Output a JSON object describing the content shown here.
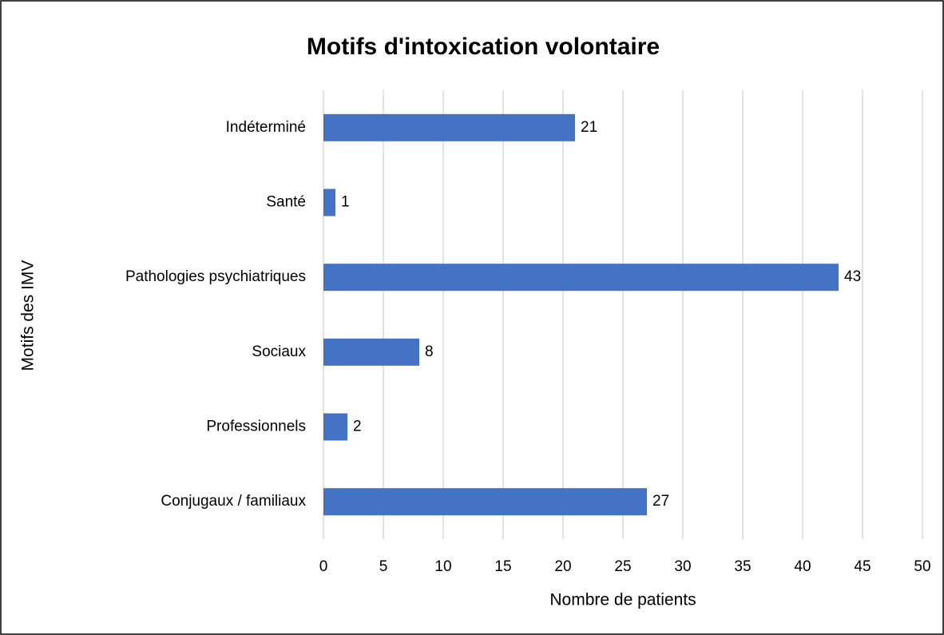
{
  "chart_data": {
    "type": "bar",
    "orientation": "horizontal",
    "title": "Motifs d'intoxication volontaire",
    "x_label": "Nombre de patients",
    "y_label": "Motifs des IMV",
    "categories": [
      "Indéterminé",
      "Santé",
      "Pathologies psychiatriques",
      "Sociaux",
      "Professionnels",
      "Conjugaux / familiaux"
    ],
    "values": [
      21,
      1,
      43,
      8,
      2,
      27
    ],
    "color": "#4472c4",
    "xlim": [
      0,
      50
    ],
    "xticks": [
      0,
      5,
      10,
      15,
      20,
      25,
      30,
      35,
      40,
      45,
      50
    ],
    "grid": true
  }
}
